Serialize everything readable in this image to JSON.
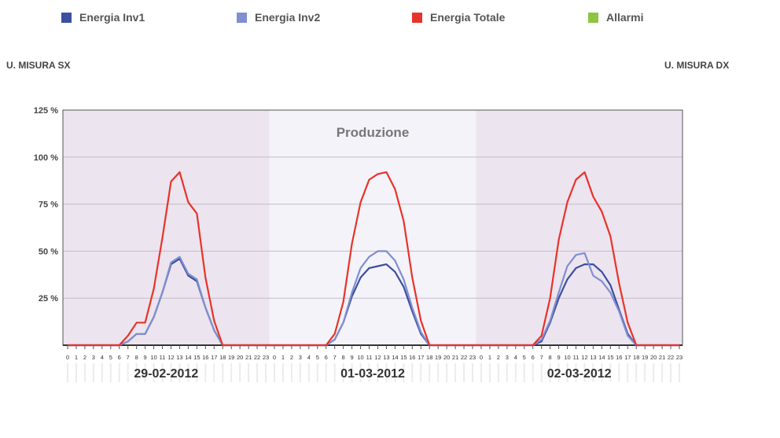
{
  "legend": [
    {
      "label": "Energia Inv1",
      "color": "#3a4fa0"
    },
    {
      "label": "Energia Inv2",
      "color": "#7f8fcf"
    },
    {
      "label": "Energia Totale",
      "color": "#e8332a"
    },
    {
      "label": "Allarmi",
      "color": "#8cc63f"
    }
  ],
  "units": {
    "left": "U. MISURA SX",
    "right": "U. MISURA DX"
  },
  "chart_data": {
    "type": "line",
    "title": "Produzione",
    "y_ticks": [
      "125 %",
      "100 %",
      "75 %",
      "50 %",
      "25 %"
    ],
    "y_tick_values": [
      125,
      100,
      75,
      50,
      25
    ],
    "ylim": [
      0,
      125
    ],
    "hours": [
      "0",
      "1",
      "2",
      "3",
      "4",
      "5",
      "6",
      "7",
      "8",
      "9",
      "10",
      "11",
      "12",
      "13",
      "14",
      "15",
      "16",
      "17",
      "18",
      "19",
      "20",
      "21",
      "22",
      "23"
    ],
    "days": [
      "29-02-2012",
      "01-03-2012",
      "02-03-2012"
    ],
    "grid": true,
    "colors": {
      "band_dark": "#ece4ee",
      "band_light": "#f4f3f9"
    },
    "series": [
      {
        "name": "Energia Inv1",
        "color": "#3a4fa0",
        "values": [
          0,
          0,
          0,
          0,
          0,
          0,
          0,
          2,
          6,
          6,
          15,
          28,
          43,
          46,
          37,
          34,
          20,
          8,
          0,
          0,
          0,
          0,
          0,
          0,
          0,
          0,
          0,
          0,
          0,
          0,
          0,
          3,
          12,
          26,
          36,
          41,
          42,
          43,
          39,
          31,
          18,
          6,
          0,
          0,
          0,
          0,
          0,
          0,
          0,
          0,
          0,
          0,
          0,
          0,
          0,
          2,
          12,
          25,
          35,
          41,
          43,
          43,
          39,
          32,
          19,
          6,
          0,
          0,
          0,
          0,
          0,
          0
        ]
      },
      {
        "name": "Energia Inv2",
        "color": "#7f8fcf",
        "values": [
          0,
          0,
          0,
          0,
          0,
          0,
          0,
          2,
          6,
          6,
          15,
          28,
          44,
          47,
          38,
          35,
          20,
          8,
          0,
          0,
          0,
          0,
          0,
          0,
          0,
          0,
          0,
          0,
          0,
          0,
          0,
          3,
          12,
          28,
          41,
          47,
          50,
          50,
          45,
          35,
          20,
          7,
          0,
          0,
          0,
          0,
          0,
          0,
          0,
          0,
          0,
          0,
          0,
          0,
          0,
          3,
          13,
          28,
          42,
          48,
          49,
          37,
          34,
          28,
          18,
          5,
          0,
          0,
          0,
          0,
          0,
          0
        ]
      },
      {
        "name": "Energia Totale",
        "color": "#e8332a",
        "values": [
          0,
          0,
          0,
          0,
          0,
          0,
          0,
          5,
          12,
          12,
          30,
          57,
          87,
          92,
          76,
          70,
          36,
          13,
          0,
          0,
          0,
          0,
          0,
          0,
          0,
          0,
          0,
          0,
          0,
          0,
          0,
          6,
          23,
          54,
          76,
          88,
          91,
          92,
          83,
          66,
          36,
          13,
          0,
          0,
          0,
          0,
          0,
          0,
          0,
          0,
          0,
          0,
          0,
          0,
          0,
          5,
          25,
          56,
          76,
          88,
          92,
          79,
          71,
          58,
          33,
          12,
          0,
          0,
          0,
          0,
          0,
          0
        ]
      }
    ]
  }
}
